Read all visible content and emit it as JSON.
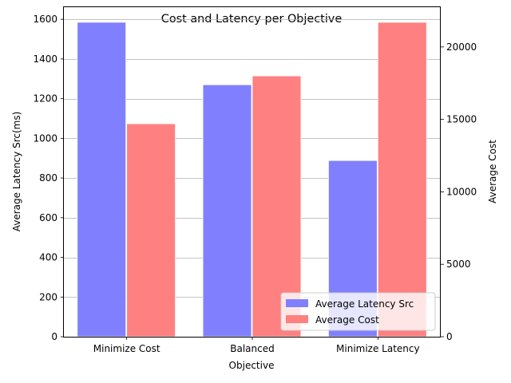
{
  "chart_data": {
    "type": "bar",
    "title": "Cost and Latency per Objective",
    "xlabel": "Objective",
    "ylabel_left": "Average Latency Src(ms)",
    "ylabel_right": "Average Cost",
    "categories": [
      "Minimize Cost",
      "Balanced",
      "Minimize Latency"
    ],
    "series": [
      {
        "name": "Average Latency Src",
        "axis": "left",
        "color": "#8080ff",
        "values": [
          1585,
          1270,
          888
        ]
      },
      {
        "name": "Average Cost",
        "axis": "right",
        "color": "#ff8080",
        "values": [
          14700,
          18000,
          21700
        ]
      }
    ],
    "ylim_left": [
      0,
      1665
    ],
    "ylim_right": [
      0,
      22800
    ],
    "yticks_left": [
      0,
      200,
      400,
      600,
      800,
      1000,
      1200,
      1400,
      1600
    ],
    "yticks_right": [
      0,
      5000,
      10000,
      15000,
      20000
    ],
    "grid": "horizontal",
    "legend_position": "lower-right"
  }
}
